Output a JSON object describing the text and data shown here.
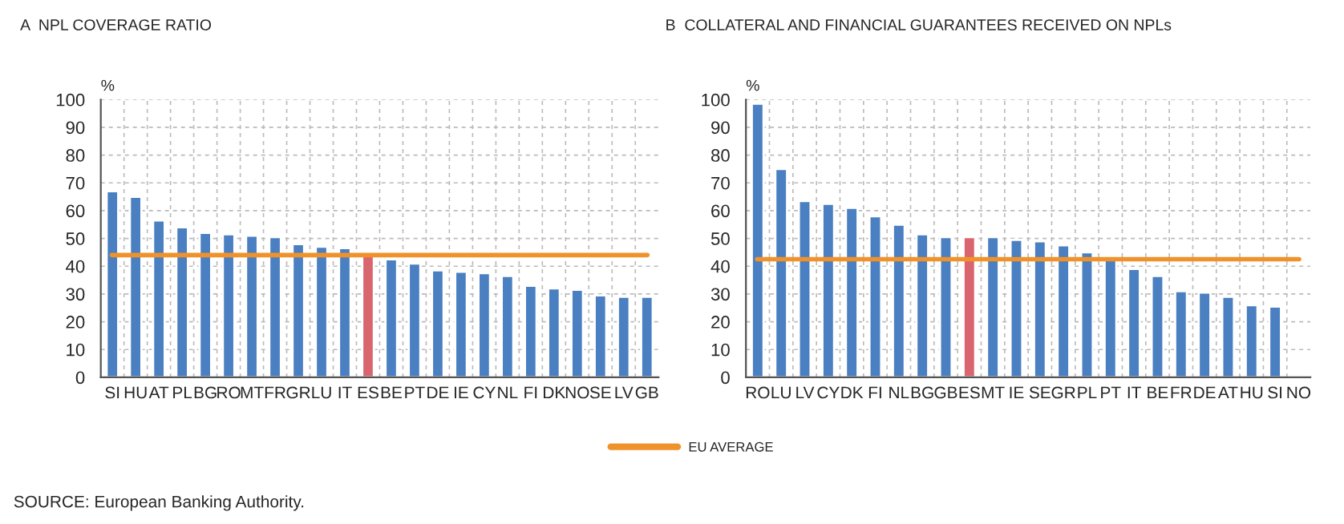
{
  "chart_data": [
    {
      "type": "bar",
      "title": "A  NPL COVERAGE RATIO",
      "ylabel": "%",
      "categories": [
        "SI",
        "HU",
        "AT",
        "PL",
        "BG",
        "RO",
        "MT",
        "FR",
        "GR",
        "LU",
        "IT",
        "ES",
        "BE",
        "PT",
        "DE",
        "IE",
        "CY",
        "NL",
        "FI",
        "DK",
        "NO",
        "SE",
        "LV",
        "GB"
      ],
      "values": [
        67,
        65,
        56.5,
        54,
        52,
        51.5,
        51,
        50.5,
        48,
        47,
        46.5,
        44,
        42.5,
        41,
        38.5,
        38,
        37.5,
        36.5,
        33,
        32,
        31.5,
        29.5,
        29,
        29
      ],
      "colors": [
        "#4a7fc1",
        "#4a7fc1",
        "#4a7fc1",
        "#4a7fc1",
        "#4a7fc1",
        "#4a7fc1",
        "#4a7fc1",
        "#4a7fc1",
        "#4a7fc1",
        "#4a7fc1",
        "#4a7fc1",
        "#d9656f",
        "#4a7fc1",
        "#4a7fc1",
        "#4a7fc1",
        "#4a7fc1",
        "#4a7fc1",
        "#4a7fc1",
        "#4a7fc1",
        "#4a7fc1",
        "#4a7fc1",
        "#4a7fc1",
        "#4a7fc1",
        "#4a7fc1"
      ],
      "ylim": [
        0,
        100
      ],
      "yticks": [
        0,
        10,
        20,
        30,
        40,
        50,
        60,
        70,
        80,
        90,
        100
      ],
      "grid": true,
      "ref_lines": [
        {
          "axis": "y",
          "value": 44,
          "label": "EU AVERAGE",
          "color": "#f0922b"
        }
      ],
      "legend": "bottom",
      "annotations": [
        "SOURCE: European Banking Authority."
      ]
    },
    {
      "type": "bar",
      "title": "B  COLLATERAL AND FINANCIAL GUARANTEES RECEIVED ON NPLs",
      "ylabel": "%",
      "categories": [
        "RO",
        "LU",
        "LV",
        "CY",
        "DK",
        "FI",
        "NL",
        "BG",
        "GB",
        "ES",
        "MT",
        "IE",
        "SE",
        "GR",
        "PL",
        "PT",
        "IT",
        "BE",
        "FR",
        "DE",
        "AT",
        "HU",
        "SI",
        "NO"
      ],
      "values": [
        98.5,
        75,
        63.5,
        62.5,
        61,
        58,
        55,
        51.5,
        50.5,
        50.5,
        50.5,
        49.5,
        49,
        47.5,
        45,
        43.5,
        39,
        36.5,
        31,
        30.5,
        29,
        26,
        25.5,
        null
      ],
      "colors": [
        "#4a7fc1",
        "#4a7fc1",
        "#4a7fc1",
        "#4a7fc1",
        "#4a7fc1",
        "#4a7fc1",
        "#4a7fc1",
        "#4a7fc1",
        "#4a7fc1",
        "#d9656f",
        "#4a7fc1",
        "#4a7fc1",
        "#4a7fc1",
        "#4a7fc1",
        "#4a7fc1",
        "#4a7fc1",
        "#4a7fc1",
        "#4a7fc1",
        "#4a7fc1",
        "#4a7fc1",
        "#4a7fc1",
        "#4a7fc1",
        "#4a7fc1",
        "#4a7fc1"
      ],
      "ylim": [
        0,
        100
      ],
      "yticks": [
        0,
        10,
        20,
        30,
        40,
        50,
        60,
        70,
        80,
        90,
        100
      ],
      "grid": true,
      "ref_lines": [
        {
          "axis": "y",
          "value": 42.5,
          "color": "#f0922b"
        }
      ],
      "legend": false
    }
  ]
}
